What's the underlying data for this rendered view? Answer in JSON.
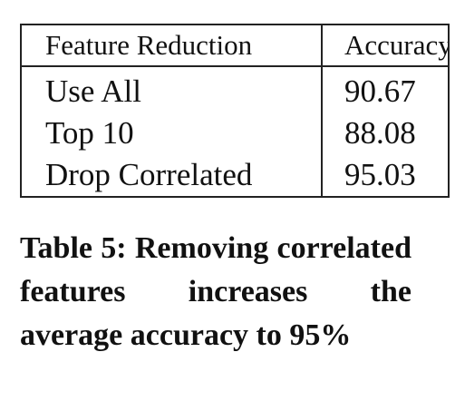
{
  "table": {
    "headers": [
      "Feature Reduction",
      "Accuracy"
    ],
    "rows": [
      [
        "Use All",
        "90.67"
      ],
      [
        "Top 10",
        "88.08"
      ],
      [
        "Drop Correlated",
        "95.03"
      ]
    ]
  },
  "caption": {
    "text": "Table 5: Removing corre­lated features increases the average accuracy to 95%"
  },
  "chart_data": {
    "type": "table",
    "columns": [
      "Feature Reduction",
      "Accuracy"
    ],
    "rows": [
      [
        "Use All",
        90.67
      ],
      [
        "Top 10",
        88.08
      ],
      [
        "Drop Correlated",
        95.03
      ]
    ]
  }
}
